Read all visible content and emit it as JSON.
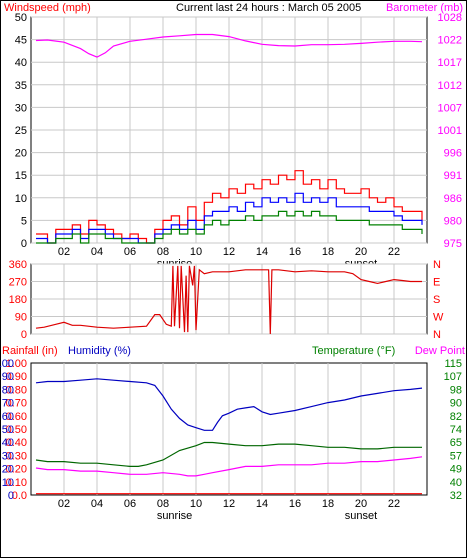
{
  "header": {
    "left_label": "Windspeed (mph)",
    "center_label": "Current last 24 hours : March 05 2005",
    "right_label": "Barometer (mb)"
  },
  "colors": {
    "background": "#ffffff",
    "frame": "#000000",
    "grid": "#c8c8c8",
    "wind_gust": "#ff0000",
    "wind_avg": "#0000ff",
    "wind_low": "#008000",
    "barometer": "#ff00ff",
    "direction": "#dd0000",
    "rainfall": "#ff0000",
    "humidity": "#0000c0",
    "temperature": "#006600",
    "dew_point": "#ff00ff",
    "label_red": "#ff0000",
    "label_magenta": "#ff00ff",
    "label_blue": "#0000c0",
    "label_green": "#008000"
  },
  "x_axis": {
    "range": [
      0,
      24
    ],
    "ticks": [
      2,
      4,
      6,
      8,
      10,
      12,
      14,
      16,
      18,
      20,
      22
    ],
    "tick_labels": [
      "02",
      "04",
      "06",
      "08",
      "10",
      "12",
      "14",
      "16",
      "18",
      "20",
      "22"
    ],
    "sunrise": {
      "label": "sunrise",
      "hour": 8.7
    },
    "sunset": {
      "label": "sunset",
      "hour": 20.0
    }
  },
  "chart_data": [
    {
      "type": "line",
      "name": "wind-barometer",
      "ylabel_left": "Windspeed (mph)",
      "ylabel_right": "Barometer (mb)",
      "ylim_left": [
        0,
        50
      ],
      "yticks_left": [
        0,
        5,
        10,
        15,
        20,
        25,
        30,
        35,
        40,
        45,
        50
      ],
      "ylim_right": [
        975,
        1028
      ],
      "yticks_right": [
        975,
        980,
        986,
        991,
        996,
        1001,
        1007,
        1012,
        1017,
        1022,
        1028
      ],
      "grid": true,
      "series": [
        {
          "axis": "right",
          "color_key": "barometer",
          "step": false,
          "x": [
            0.3,
            1,
            2,
            3,
            3.5,
            4,
            4.5,
            5,
            6,
            7,
            8,
            9,
            10,
            11,
            12,
            13,
            14,
            15,
            16,
            17,
            18,
            19,
            20,
            21,
            22,
            23,
            23.7
          ],
          "values": [
            1022.5,
            1022.6,
            1022.1,
            1020.6,
            1019.4,
            1018.6,
            1019.6,
            1021.2,
            1022.3,
            1022.8,
            1023.3,
            1023.6,
            1023.9,
            1023.9,
            1023.4,
            1022.4,
            1021.6,
            1021.3,
            1021.2,
            1021.5,
            1021.5,
            1021.6,
            1021.8,
            1022.1,
            1022.3,
            1022.3,
            1022.2
          ]
        },
        {
          "axis": "left",
          "color_key": "wind_gust",
          "step": true,
          "x": [
            0.3,
            1,
            1.5,
            2,
            2.5,
            3,
            3.5,
            4,
            4.5,
            5,
            5.5,
            6,
            6.5,
            7,
            7.5,
            8,
            8.5,
            9,
            9.5,
            10,
            10.5,
            11,
            11.5,
            12,
            12.5,
            13,
            13.5,
            14,
            14.5,
            15,
            15.5,
            16,
            16.5,
            17,
            17.5,
            18,
            18.5,
            19,
            19.5,
            20,
            20.5,
            21,
            21.5,
            22,
            22.5,
            23,
            23.7
          ],
          "values": [
            2,
            0,
            3,
            3,
            4,
            2,
            5,
            4,
            3,
            2,
            1,
            2,
            1,
            0,
            3,
            5,
            6,
            4,
            8,
            5,
            9,
            11,
            10,
            12,
            11,
            13,
            12,
            14,
            13,
            15,
            14,
            16,
            13,
            14,
            12,
            14,
            12,
            11,
            11,
            12,
            10,
            9,
            10,
            8,
            7,
            7,
            5
          ]
        },
        {
          "axis": "left",
          "color_key": "wind_avg",
          "step": true,
          "x": [
            0.3,
            1,
            1.5,
            2,
            2.5,
            3,
            3.5,
            4,
            4.5,
            5,
            5.5,
            6,
            6.5,
            7,
            7.5,
            8,
            8.5,
            9,
            9.5,
            10,
            10.5,
            11,
            11.5,
            12,
            12.5,
            13,
            13.5,
            14,
            14.5,
            15,
            15.5,
            16,
            16.5,
            17,
            17.5,
            18,
            18.5,
            19,
            19.5,
            20,
            20.5,
            21,
            21.5,
            22,
            22.5,
            23,
            23.7
          ],
          "values": [
            1,
            0,
            2,
            2,
            3,
            1,
            3,
            3,
            2,
            1,
            1,
            1,
            0,
            0,
            2,
            3,
            4,
            3,
            5,
            3,
            6,
            7,
            7,
            8,
            7,
            9,
            8,
            10,
            9,
            10,
            9,
            11,
            9,
            10,
            9,
            10,
            8,
            8,
            8,
            8,
            7,
            7,
            7,
            6,
            5,
            5,
            4
          ]
        },
        {
          "axis": "left",
          "color_key": "wind_low",
          "step": true,
          "x": [
            0.3,
            1,
            1.5,
            2,
            2.5,
            3,
            3.5,
            4,
            4.5,
            5,
            5.5,
            6,
            6.5,
            7,
            7.5,
            8,
            8.5,
            9,
            9.5,
            10,
            10.5,
            11,
            11.5,
            12,
            12.5,
            13,
            13.5,
            14,
            14.5,
            15,
            15.5,
            16,
            16.5,
            17,
            17.5,
            18,
            18.5,
            19,
            19.5,
            20,
            20.5,
            21,
            21.5,
            22,
            22.5,
            23,
            23.7
          ],
          "values": [
            0,
            0,
            1,
            1,
            2,
            0,
            2,
            2,
            1,
            1,
            0,
            0,
            0,
            0,
            1,
            2,
            3,
            2,
            3,
            2,
            4,
            5,
            4,
            5,
            5,
            6,
            5,
            6,
            6,
            7,
            6,
            7,
            6,
            7,
            6,
            6,
            5,
            5,
            5,
            5,
            4,
            4,
            4,
            4,
            3,
            3,
            2
          ]
        }
      ]
    },
    {
      "type": "line",
      "name": "wind-direction",
      "ylim_left": [
        0,
        360
      ],
      "yticks_left": [
        0,
        90,
        180,
        270,
        360
      ],
      "compass_labels": [
        "N",
        "W",
        "S",
        "E",
        "N"
      ],
      "grid": true,
      "series": [
        {
          "axis": "left",
          "color_key": "direction",
          "step": false,
          "x": [
            0.3,
            0.8,
            1.5,
            2,
            2.5,
            3,
            4,
            5,
            6,
            7,
            7.5,
            7.8,
            8.2,
            8.5,
            8.6,
            8.7,
            8.9,
            9.0,
            9.1,
            9.3,
            9.4,
            9.5,
            9.6,
            9.8,
            9.9,
            10.0,
            10.2,
            10.5,
            11,
            12,
            13,
            14,
            14.4,
            14.5,
            14.6,
            15,
            16,
            17,
            18,
            19,
            19.5,
            20,
            20.5,
            21,
            21.5,
            22,
            22.5,
            23,
            23.7
          ],
          "values": [
            30,
            35,
            50,
            60,
            45,
            45,
            35,
            30,
            35,
            40,
            100,
            100,
            50,
            40,
            350,
            40,
            350,
            30,
            350,
            10,
            300,
            10,
            350,
            250,
            350,
            20,
            330,
            310,
            320,
            320,
            330,
            330,
            330,
            0,
            330,
            330,
            320,
            325,
            320,
            320,
            310,
            280,
            270,
            260,
            270,
            280,
            275,
            270,
            270
          ]
        }
      ]
    },
    {
      "type": "line",
      "name": "rain-humidity-temperature",
      "ylabel_left": "Rainfall (in)",
      "ylabel_humidity": "Humidity (%)",
      "ylabel_right": "Temperature (°F)",
      "ylabel_right2": "Dew Point",
      "ylim_left": [
        0,
        1.0
      ],
      "yticks_left": [
        "0.0",
        "0.10",
        "0.20",
        "0.30",
        "0.40",
        "0.50",
        "0.60",
        "0.70",
        "0.80",
        "0.90",
        "1.00"
      ],
      "ylim_humidity": [
        0,
        100
      ],
      "yticks_humidity": [
        "0",
        "10",
        "20",
        "30",
        "40",
        "50",
        "60",
        "70",
        "80",
        "90",
        "100"
      ],
      "ylim_right": [
        32,
        115
      ],
      "yticks_right": [
        32,
        40,
        49,
        57,
        65,
        74,
        82,
        90,
        98,
        107,
        115
      ],
      "grid": true,
      "series": [
        {
          "axis": "left",
          "color_key": "rainfall",
          "step": false,
          "x": [
            0.3,
            23.7
          ],
          "values": [
            0.01,
            0.01
          ]
        },
        {
          "axis": "humidity",
          "color_key": "humidity",
          "step": false,
          "x": [
            0.3,
            1,
            2,
            3,
            4,
            5,
            6,
            7,
            7.5,
            8,
            8.5,
            9,
            9.5,
            10,
            10.5,
            11,
            11.3,
            11.6,
            12,
            12.5,
            13,
            13.5,
            14,
            14.5,
            15,
            16,
            17,
            18,
            19,
            20,
            21,
            22,
            23,
            23.7
          ],
          "values": [
            85,
            86,
            86,
            87,
            88,
            87,
            86,
            85,
            83,
            75,
            65,
            58,
            53,
            51,
            49,
            49,
            55,
            60,
            62,
            65,
            66,
            67,
            63,
            61,
            62,
            64,
            67,
            70,
            72,
            75,
            77,
            79,
            80,
            81
          ]
        },
        {
          "axis": "right",
          "color_key": "temperature",
          "step": false,
          "x": [
            0.3,
            1,
            2,
            3,
            4,
            5,
            6,
            6.5,
            7,
            8,
            9,
            10,
            10.5,
            11,
            12,
            13,
            14,
            15,
            16,
            17,
            18,
            19,
            20,
            21,
            22,
            23,
            23.7
          ],
          "values": [
            54,
            53,
            53,
            52,
            52,
            51,
            50,
            50,
            51,
            54,
            60,
            63,
            65,
            65,
            64,
            63,
            63,
            64,
            64,
            63,
            62,
            62,
            61,
            61,
            62,
            62,
            62
          ]
        },
        {
          "axis": "right",
          "color_key": "dew_point",
          "step": false,
          "x": [
            0.3,
            1,
            2,
            3,
            4,
            5,
            6,
            7,
            8,
            9,
            9.5,
            10,
            10.5,
            11,
            12,
            13,
            14,
            15,
            16,
            17,
            18,
            19,
            20,
            21,
            22,
            23,
            23.7
          ],
          "values": [
            49,
            48,
            48,
            47,
            47,
            46,
            45,
            45,
            46,
            45,
            44,
            44,
            45,
            46,
            48,
            50,
            50,
            51,
            51,
            51,
            52,
            52,
            53,
            53,
            54,
            55,
            56
          ]
        }
      ]
    }
  ],
  "panel_labels": {
    "bottom_left": "Rainfall (in)",
    "bottom_humidity": "Humidity (%)",
    "bottom_temp": "Temperature (°F)",
    "bottom_dew": "Dew Point"
  }
}
